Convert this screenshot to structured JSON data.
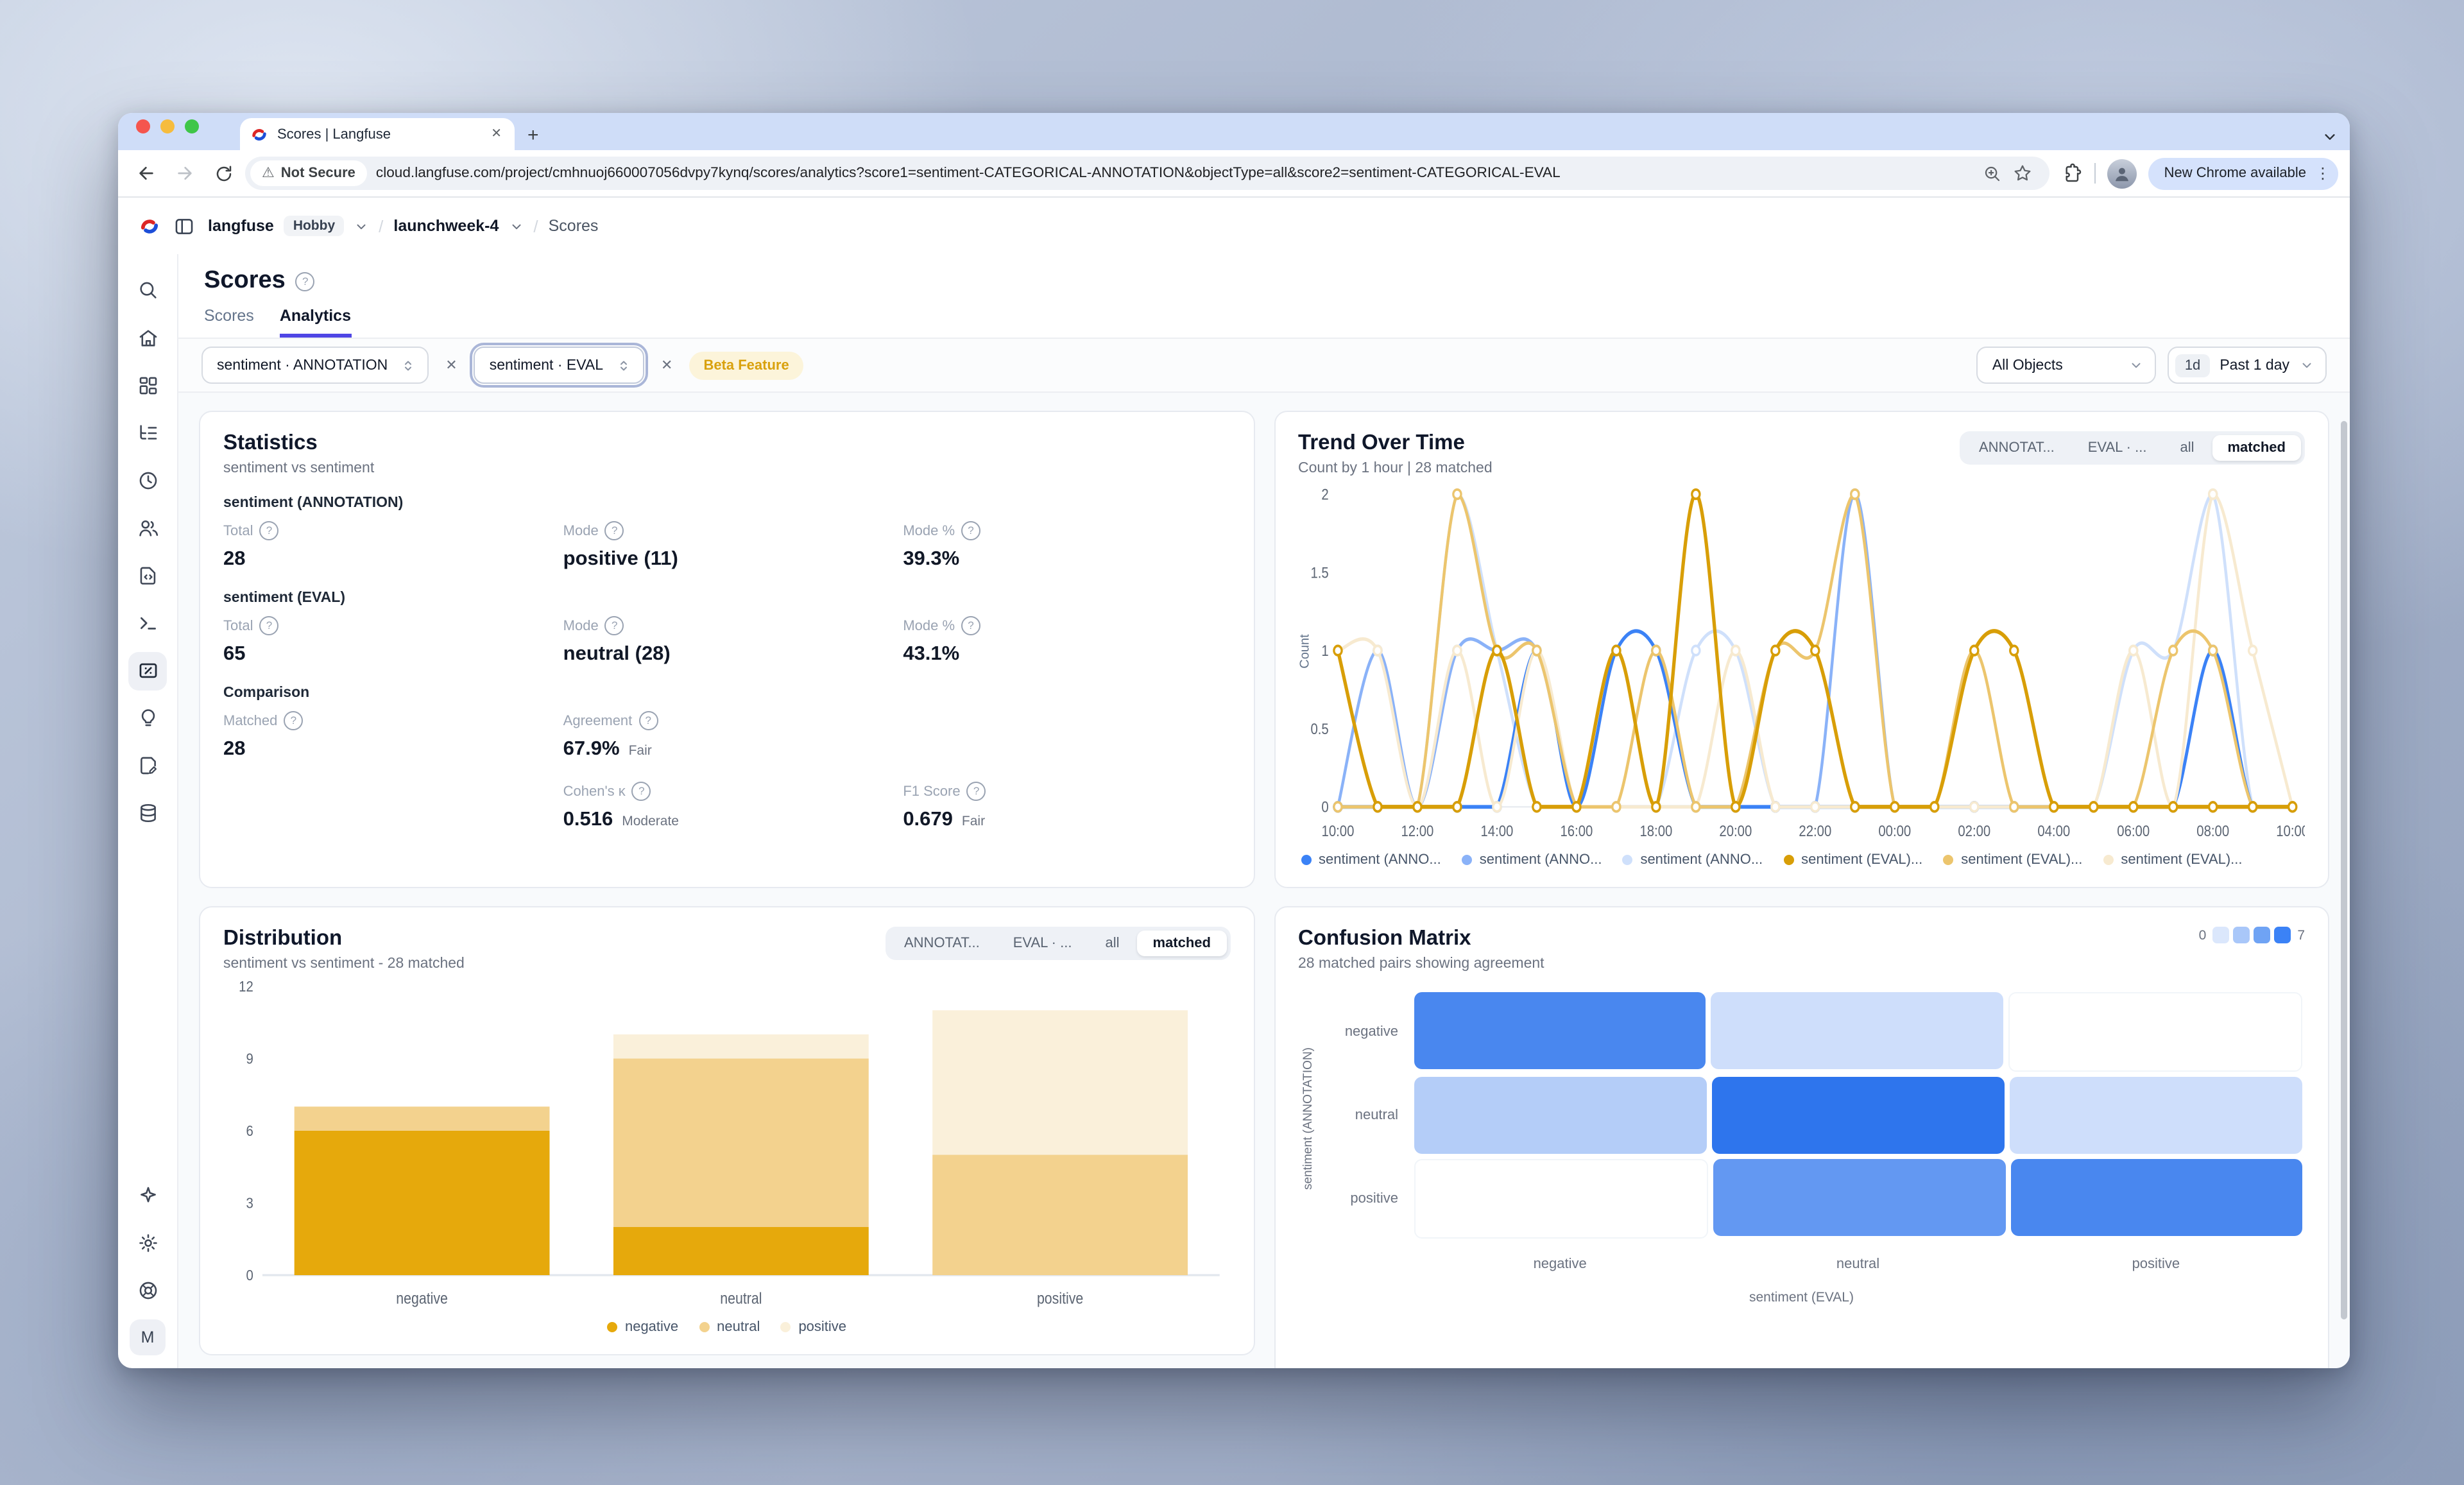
{
  "icons": {
    "close": "✕",
    "plus": "+",
    "kebab": "⋮",
    "warning": "⚠",
    "help": "?",
    "chevron_small": "⌄"
  },
  "browser": {
    "tab_title": "Scores | Langfuse",
    "security_label": "Not Secure",
    "url": "cloud.langfuse.com/project/cmhnuoj660007056dvpy7kynq/scores/analytics?score1=sentiment-CATEGORICAL-ANNOTATION&objectType=all&score2=sentiment-CATEGORICAL-EVAL",
    "update_pill": "New Chrome available"
  },
  "app": {
    "breadcrumb": {
      "org": "langfuse",
      "plan_badge": "Hobby",
      "project": "launchweek-4",
      "page": "Scores"
    },
    "sidebar_avatar": "M"
  },
  "page": {
    "title": "Scores",
    "tabs": [
      {
        "label": "Scores",
        "active": false
      },
      {
        "label": "Analytics",
        "active": true
      }
    ],
    "filters": {
      "score1": "sentiment · ANNOTATION",
      "score2": "sentiment · EVAL",
      "beta": "Beta Feature",
      "objects": "All Objects",
      "range_chip": "1d",
      "range": "Past 1 day"
    }
  },
  "statistics": {
    "title": "Statistics",
    "subtitle": "sentiment vs sentiment",
    "sections": [
      {
        "label": "sentiment (ANNOTATION)",
        "metrics": [
          {
            "label": "Total",
            "value": "28",
            "col": 1,
            "row": 1
          },
          {
            "label": "Mode",
            "value": "positive (11)",
            "col": 2,
            "row": 1
          },
          {
            "label": "Mode %",
            "value": "39.3%",
            "col": 3,
            "row": 1
          }
        ]
      },
      {
        "label": "sentiment (EVAL)",
        "metrics": [
          {
            "label": "Total",
            "value": "65",
            "col": 1,
            "row": 1
          },
          {
            "label": "Mode",
            "value": "neutral (28)",
            "col": 2,
            "row": 1
          },
          {
            "label": "Mode %",
            "value": "43.1%",
            "col": 3,
            "row": 1
          }
        ]
      },
      {
        "label": "Comparison",
        "metrics": [
          {
            "label": "Matched",
            "value": "28",
            "col": 1,
            "row": 1
          },
          {
            "label": "Agreement",
            "value": "67.9%",
            "suffix": "Fair",
            "col": 2,
            "row": 1
          },
          {
            "label": "Cohen's κ",
            "value": "0.516",
            "suffix": "Moderate",
            "col": 2,
            "row": 2
          },
          {
            "label": "F1 Score",
            "value": "0.679",
            "suffix": "Fair",
            "col": 3,
            "row": 2
          }
        ]
      }
    ]
  },
  "trend": {
    "title": "Trend Over Time",
    "subtitle": "Count by 1 hour | 28 matched",
    "toggle": [
      "ANNOTAT...",
      "EVAL · ...",
      "all",
      "matched"
    ],
    "toggle_selected": "matched",
    "ylabel": "Count"
  },
  "distribution": {
    "title": "Distribution",
    "subtitle": "sentiment vs sentiment - 28 matched",
    "toggle": [
      "ANNOTAT...",
      "EVAL · ...",
      "all",
      "matched"
    ],
    "toggle_selected": "matched"
  },
  "confusion": {
    "title": "Confusion Matrix",
    "subtitle": "28 matched pairs showing agreement",
    "scale": {
      "min": "0",
      "max": "7",
      "swatches": [
        "#dbe7fc",
        "#a9c7f9",
        "#6fa3f4",
        "#3b82f6"
      ]
    },
    "xlabel": "sentiment (EVAL)",
    "ylabel": "sentiment (ANNOTATION)"
  },
  "chart_data": [
    {
      "id": "trend",
      "type": "line",
      "title": "Trend Over Time",
      "ylabel": "Count",
      "ylim": [
        0,
        2
      ],
      "yticks": [
        0,
        0.5,
        1,
        1.5,
        2
      ],
      "x": [
        "10:00",
        "11:00",
        "12:00",
        "13:00",
        "14:00",
        "15:00",
        "16:00",
        "17:00",
        "18:00",
        "19:00",
        "20:00",
        "21:00",
        "22:00",
        "23:00",
        "00:00",
        "01:00",
        "02:00",
        "03:00",
        "04:00",
        "05:00",
        "06:00",
        "07:00",
        "08:00",
        "09:00",
        "10:00"
      ],
      "xticks": [
        "10:00",
        "12:00",
        "14:00",
        "16:00",
        "18:00",
        "20:00",
        "22:00",
        "00:00",
        "02:00",
        "04:00",
        "06:00",
        "08:00",
        "10:00"
      ],
      "note": "point values approximated from pixels; counts are 0, 1 or 2 per hour",
      "series": [
        {
          "name": "sentiment (ANNOTATION) negative",
          "legend": "sentiment (ANNO...",
          "color": "#3b82f6",
          "width": 2.4,
          "values": [
            0,
            0,
            0,
            0,
            0,
            1,
            0,
            1,
            1,
            0,
            0,
            0,
            0,
            0,
            0,
            0,
            0,
            0,
            0,
            0,
            0,
            0,
            1,
            0,
            0
          ]
        },
        {
          "name": "sentiment (ANNOTATION) neutral",
          "legend": "sentiment (ANNO...",
          "color": "#8ab2f8",
          "width": 2.2,
          "values": [
            0,
            1,
            0,
            1,
            1,
            1,
            0,
            0,
            0,
            0,
            0,
            0,
            0,
            2,
            0,
            0,
            0,
            0,
            0,
            0,
            0,
            0,
            0,
            0,
            0
          ]
        },
        {
          "name": "sentiment (ANNOTATION) positive",
          "legend": "sentiment (ANNO...",
          "color": "#cfe0fb",
          "width": 2.2,
          "values": [
            0,
            0,
            0,
            2,
            1,
            0,
            0,
            0,
            0,
            1,
            1,
            0,
            0,
            0,
            0,
            0,
            0,
            0,
            0,
            0,
            1,
            1,
            2,
            0,
            0
          ]
        },
        {
          "name": "sentiment (EVAL) negative",
          "legend": "sentiment (EVAL)...",
          "color": "#d89e07",
          "width": 2.6,
          "values": [
            1,
            0,
            0,
            0,
            1,
            0,
            0,
            1,
            0,
            2,
            0,
            1,
            1,
            0,
            0,
            0,
            1,
            1,
            0,
            0,
            0,
            0,
            0,
            0,
            0
          ]
        },
        {
          "name": "sentiment (EVAL) neutral",
          "legend": "sentiment (EVAL)...",
          "color": "#ecc56d",
          "width": 2.2,
          "values": [
            0,
            0,
            0,
            2,
            1,
            1,
            0,
            0,
            1,
            0,
            0,
            1,
            1,
            2,
            0,
            0,
            1,
            0,
            0,
            0,
            0,
            1,
            1,
            0,
            0
          ]
        },
        {
          "name": "sentiment (EVAL) positive",
          "legend": "sentiment (EVAL)...",
          "color": "#f7ead0",
          "width": 2.2,
          "values": [
            1,
            1,
            0,
            1,
            0,
            1,
            0,
            0,
            0,
            0,
            1,
            0,
            0,
            0,
            0,
            0,
            0,
            0,
            0,
            0,
            1,
            0,
            2,
            1,
            0
          ]
        }
      ]
    },
    {
      "id": "distribution",
      "type": "bar",
      "stacked": true,
      "title": "Distribution",
      "categories": [
        "negative",
        "neutral",
        "positive"
      ],
      "yticks": [
        0,
        3,
        6,
        9,
        12
      ],
      "ylim": [
        0,
        12
      ],
      "series": [
        {
          "name": "negative",
          "color": "#e6a90c",
          "values": [
            6,
            2,
            0
          ]
        },
        {
          "name": "neutral",
          "color": "#f3d28e",
          "values": [
            1,
            7,
            5
          ]
        },
        {
          "name": "positive",
          "color": "#faf0da",
          "values": [
            0,
            1,
            6
          ]
        }
      ]
    },
    {
      "id": "confusion",
      "type": "heatmap",
      "title": "Confusion Matrix",
      "rows": [
        "negative",
        "neutral",
        "positive"
      ],
      "cols": [
        "negative",
        "neutral",
        "positive"
      ],
      "values": [
        [
          6,
          1,
          0
        ],
        [
          2,
          7,
          1
        ],
        [
          0,
          5,
          6
        ]
      ],
      "vmin": 0,
      "vmax": 7,
      "color_low": "#e9f0fd",
      "color_high": "#2e75ed"
    }
  ]
}
